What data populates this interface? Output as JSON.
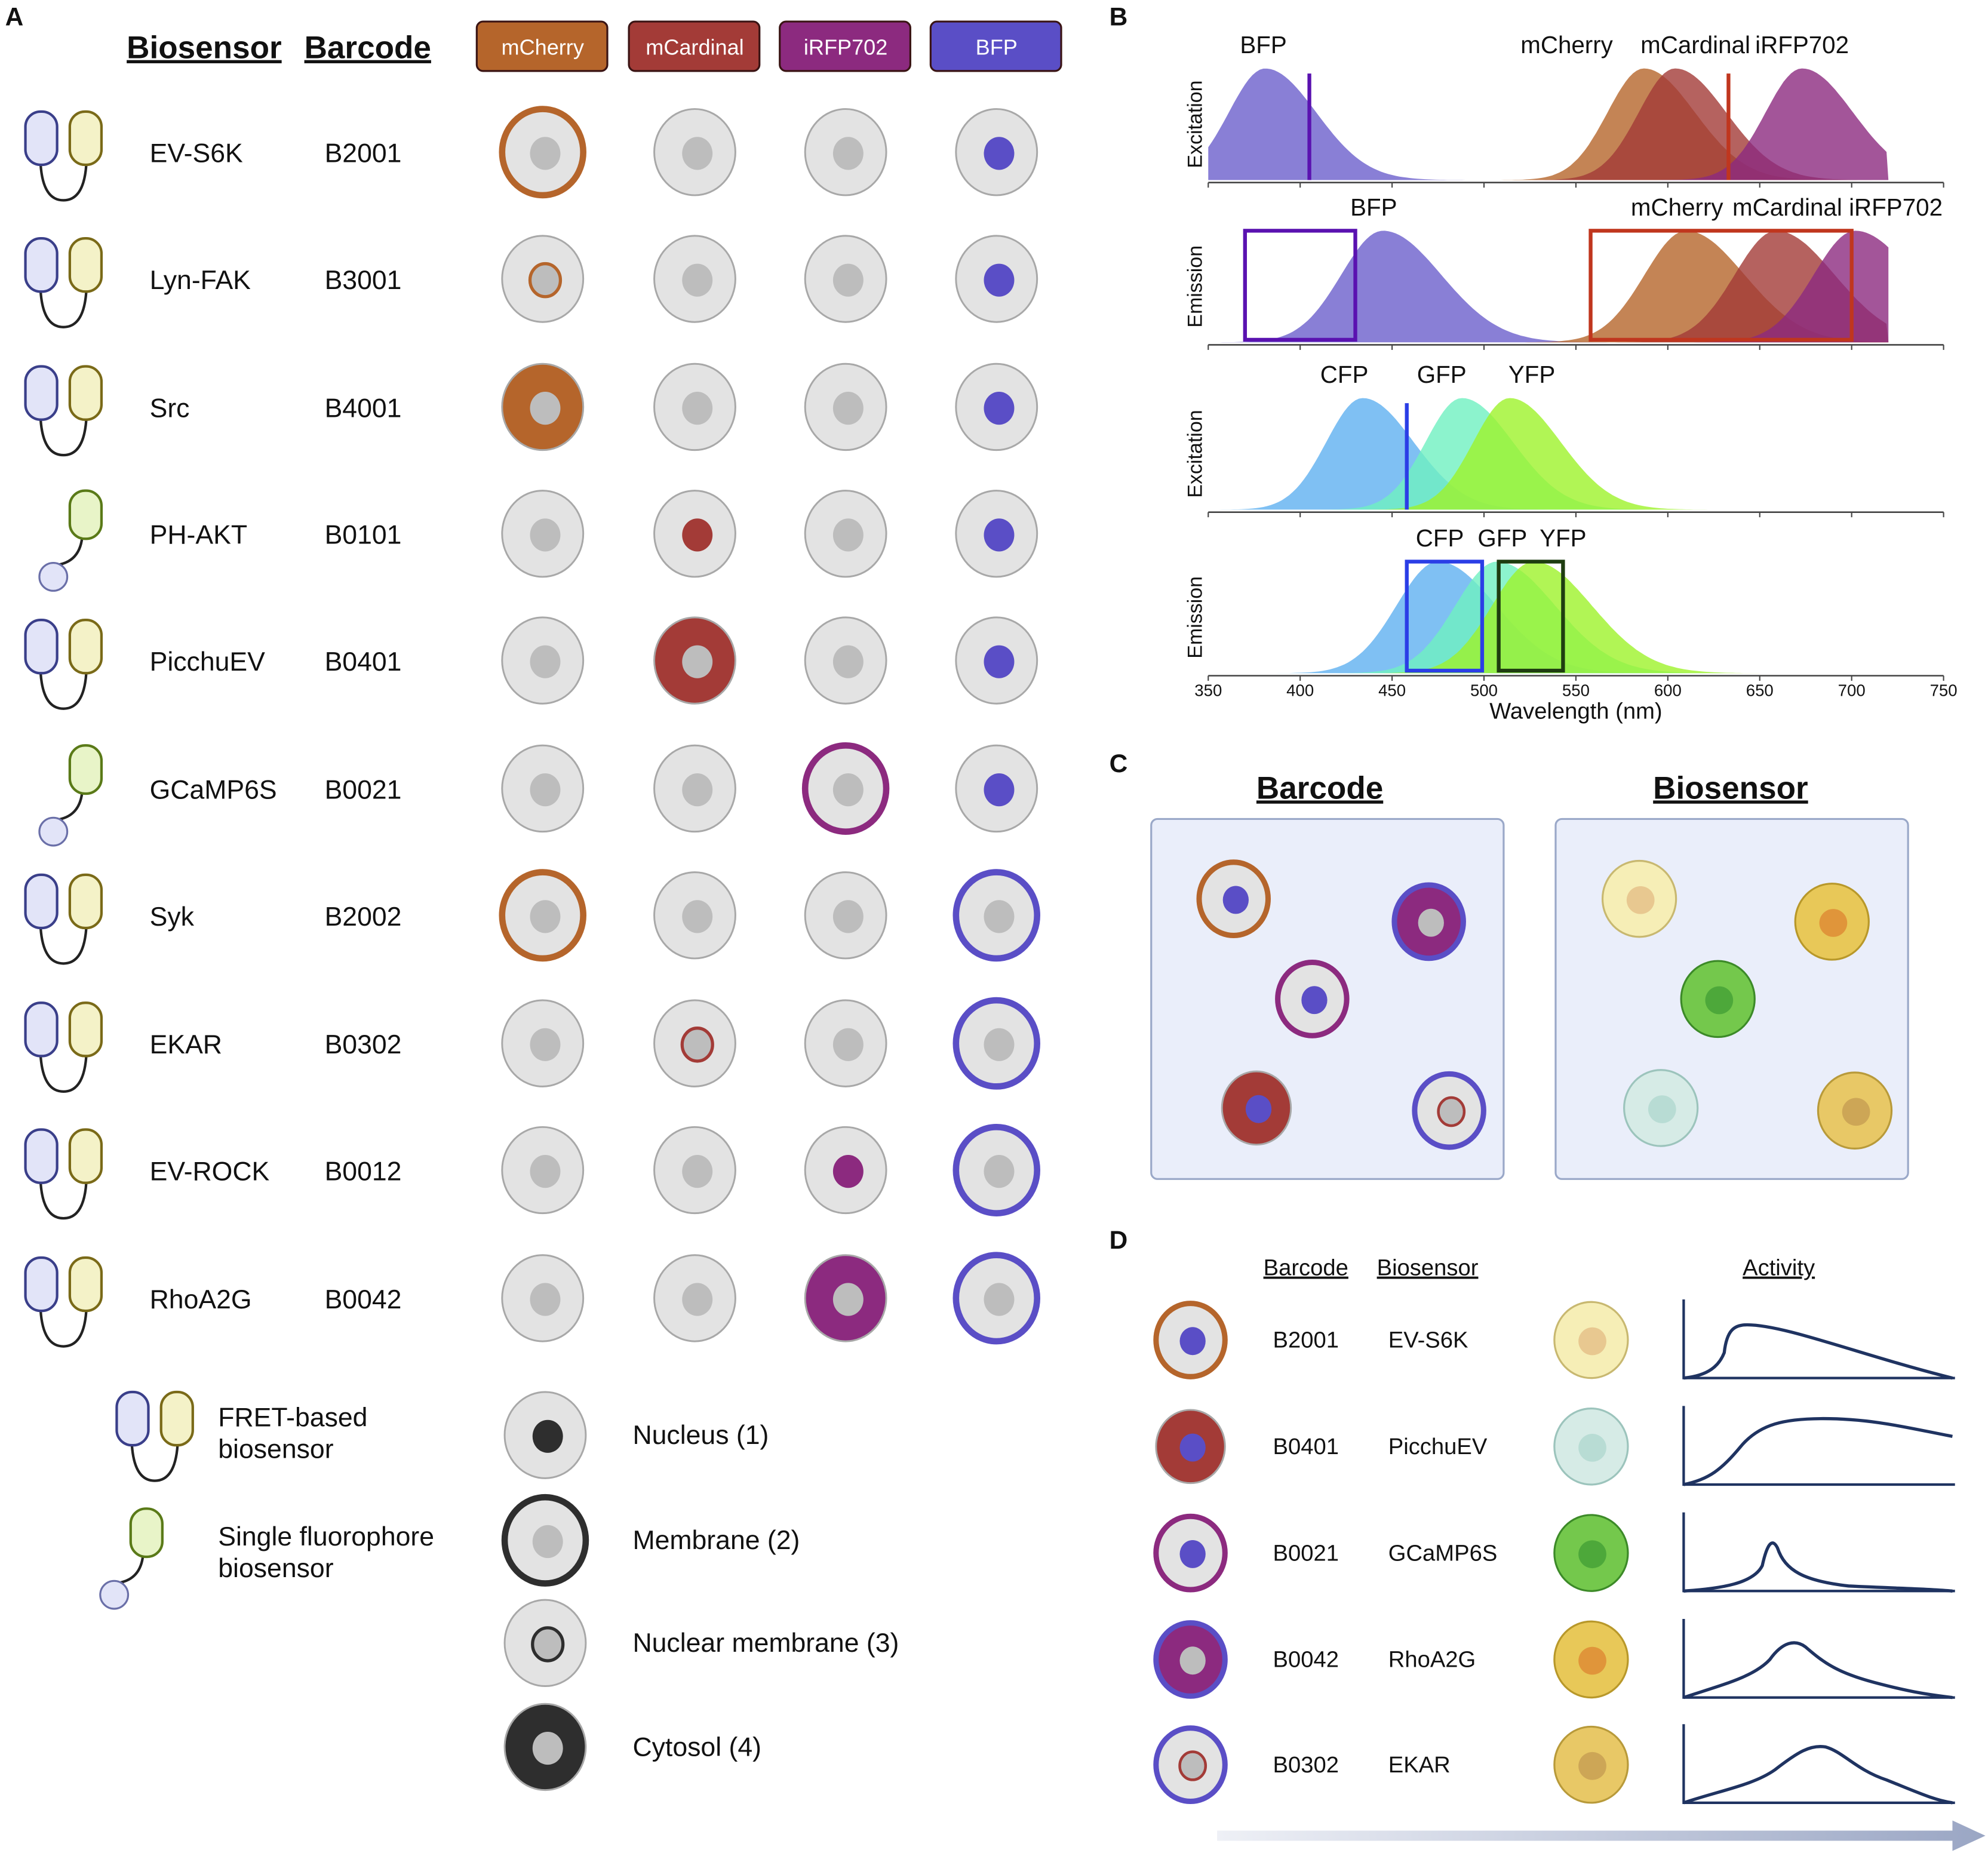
{
  "colors": {
    "mCherry": "#b5652b",
    "mCardinal": "#a33b37",
    "iRFP702": "#8c2a7f",
    "BFP": "#5a4ec6",
    "cell": "#e3e3e3",
    "cellStroke": "#a8a8a8",
    "nucleus": "#bdbdbd",
    "legendDark": "#2e2e2e",
    "activity": "#1f3361"
  },
  "panelA": {
    "label": "A",
    "header_biosensor": "Biosensor",
    "header_barcode": "Barcode",
    "channels": [
      "mCherry",
      "mCardinal",
      "iRFP702",
      "BFP"
    ],
    "rows": [
      {
        "biosensor": "EV-S6K",
        "barcode": "B2001",
        "type": "fret"
      },
      {
        "biosensor": "Lyn-FAK",
        "barcode": "B3001",
        "type": "fret"
      },
      {
        "biosensor": "Src",
        "barcode": "B4001",
        "type": "fret"
      },
      {
        "biosensor": "PH-AKT",
        "barcode": "B0101",
        "type": "single"
      },
      {
        "biosensor": "PicchuEV",
        "barcode": "B0401",
        "type": "fret"
      },
      {
        "biosensor": "GCaMP6S",
        "barcode": "B0021",
        "type": "single"
      },
      {
        "biosensor": "Syk",
        "barcode": "B2002",
        "type": "fret"
      },
      {
        "biosensor": "EKAR",
        "barcode": "B0302",
        "type": "fret"
      },
      {
        "biosensor": "EV-ROCK",
        "barcode": "B0012",
        "type": "fret"
      },
      {
        "biosensor": "RhoA2G",
        "barcode": "B0042",
        "type": "fret"
      }
    ],
    "legend_types": [
      {
        "type": "fret",
        "line1": "FRET-based",
        "line2": "biosensor"
      },
      {
        "type": "single",
        "line1": "Single fluorophore",
        "line2": "biosensor"
      }
    ],
    "legend_locations": [
      {
        "code": 1,
        "label": "Nucleus (1)"
      },
      {
        "code": 2,
        "label": "Membrane (2)"
      },
      {
        "code": 3,
        "label": "Nuclear membrane (3)"
      },
      {
        "code": 4,
        "label": "Cytosol (4)"
      }
    ]
  },
  "panelB": {
    "label": "B",
    "xlabel": "Wavelength (nm)",
    "xlim": [
      350,
      750
    ],
    "xticks": [
      350,
      400,
      450,
      500,
      550,
      600,
      650,
      700,
      750
    ],
    "subplots": [
      {
        "ylabel": "Excitation",
        "labels": [
          {
            "text": "BFP",
            "at": 380
          },
          {
            "text": "mCherry",
            "at": 545
          },
          {
            "text": "mCardinal",
            "at": 615
          },
          {
            "text": "iRFP702",
            "at": 673
          }
        ],
        "series": [
          {
            "name": "BFP",
            "peak": 381,
            "color": "#6b5fcc"
          },
          {
            "name": "mCherry",
            "peak": 587,
            "color": "#b5652b"
          },
          {
            "name": "mCardinal",
            "peak": 604,
            "color": "#a33b37"
          },
          {
            "name": "iRFP702",
            "peak": 673,
            "color": "#8c2a7f"
          }
        ],
        "laser_lines": [
          {
            "nm": 405,
            "color": "#5a12b0"
          },
          {
            "nm": 633,
            "color": "#c0361e"
          }
        ],
        "filters": []
      },
      {
        "ylabel": "Emission",
        "labels": [
          {
            "text": "BFP",
            "at": 440
          },
          {
            "text": "mCherry",
            "at": 605
          },
          {
            "text": "mCardinal",
            "at": 665
          },
          {
            "text": "iRFP702",
            "at": 724
          }
        ],
        "series": [
          {
            "name": "BFP",
            "peak": 445,
            "color": "#6b5fcc"
          },
          {
            "name": "mCherry",
            "peak": 610,
            "color": "#b5652b"
          },
          {
            "name": "mCardinal",
            "peak": 659,
            "color": "#a33b37"
          },
          {
            "name": "iRFP702",
            "peak": 702,
            "color": "#8c2a7f"
          }
        ],
        "laser_lines": [],
        "filters": [
          {
            "from": 370,
            "to": 430,
            "color": "#5a12b0"
          },
          {
            "from": 558,
            "to": 700,
            "color": "#c0361e"
          }
        ]
      },
      {
        "ylabel": "Excitation",
        "labels": [
          {
            "text": "CFP",
            "at": 424
          },
          {
            "text": "GFP",
            "at": 477
          },
          {
            "text": "YFP",
            "at": 526
          }
        ],
        "series": [
          {
            "name": "CFP",
            "peak": 434,
            "color": "#5fb0f0"
          },
          {
            "name": "GFP",
            "peak": 488,
            "color": "#6ff0c0"
          },
          {
            "name": "YFP",
            "peak": 514,
            "color": "#9ef22a"
          }
        ],
        "laser_lines": [
          {
            "nm": 458,
            "color": "#2b3ee6"
          }
        ],
        "filters": []
      },
      {
        "ylabel": "Emission",
        "labels": [
          {
            "text": "CFP",
            "at": 476
          },
          {
            "text": "GFP",
            "at": 510
          },
          {
            "text": "YFP",
            "at": 543
          }
        ],
        "series": [
          {
            "name": "CFP",
            "peak": 475,
            "color": "#5fb0f0"
          },
          {
            "name": "GFP",
            "peak": 507,
            "color": "#6ff0c0"
          },
          {
            "name": "YFP",
            "peak": 527,
            "color": "#9ef22a"
          }
        ],
        "laser_lines": [],
        "filters": [
          {
            "from": 458,
            "to": 499,
            "color": "#2b3ee6"
          },
          {
            "from": 508,
            "to": 543,
            "color": "#1e3d10"
          }
        ]
      }
    ]
  },
  "panelC": {
    "label": "C",
    "barcode_title": "Barcode",
    "biosensor_title": "Biosensor",
    "barcode_cells": [
      {
        "membrane": "mCherry",
        "nucleus": "BFP"
      },
      {
        "membrane": "BFP",
        "cytosol": "iRFP702"
      },
      {
        "membrane": "iRFP702",
        "nucleus": "BFP"
      },
      {
        "cytosol": "mCardinal",
        "nucleus": "BFP"
      },
      {
        "membrane": "BFP",
        "nuclear_membrane": "mCardinal"
      }
    ],
    "biosensor_cells": [
      {
        "fill": "#f6eeb6",
        "stroke": "#c8b870",
        "nucleus": "#e8c890"
      },
      {
        "fill": "#e8c858",
        "stroke": "#b8982a",
        "nucleus": "#e0953a"
      },
      {
        "fill": "#74c84c",
        "stroke": "#3c8a28",
        "nucleus": "#4da83a"
      },
      {
        "fill": "#d6ebe6",
        "stroke": "#9cc4bc",
        "nucleus": "#b8dcd4"
      },
      {
        "fill": "#e8c866",
        "stroke": "#b89a3a",
        "nucleus": "#cda656"
      }
    ]
  },
  "panelD": {
    "label": "D",
    "header_barcode": "Barcode",
    "header_biosensor": "Biosensor",
    "header_activity": "Activity",
    "rows": [
      {
        "barcode": "B2001",
        "biosensor": "EV-S6K",
        "cell": {
          "membrane": "mCherry",
          "nucleus": "BFP"
        },
        "sensor": {
          "fill": "#f6eeb6",
          "stroke": "#c8b870",
          "nucleus": "#e8c890"
        },
        "activity": "fast-rise-slow-decay"
      },
      {
        "barcode": "B0401",
        "biosensor": "PicchuEV",
        "cell": {
          "cytosol": "mCardinal",
          "nucleus": "BFP"
        },
        "sensor": {
          "fill": "#d6ebe6",
          "stroke": "#9cc4bc",
          "nucleus": "#b8dcd4"
        },
        "activity": "sustained"
      },
      {
        "barcode": "B0021",
        "biosensor": "GCaMP6S",
        "cell": {
          "membrane": "iRFP702",
          "nucleus": "BFP"
        },
        "sensor": {
          "fill": "#74c84c",
          "stroke": "#3c8a28",
          "nucleus": "#4da83a"
        },
        "activity": "sharp-transient"
      },
      {
        "barcode": "B0042",
        "biosensor": "RhoA2G",
        "cell": {
          "membrane": "BFP",
          "cytosol": "iRFP702"
        },
        "sensor": {
          "fill": "#e8c858",
          "stroke": "#b8982a",
          "nucleus": "#e0953a"
        },
        "activity": "broad-peak"
      },
      {
        "barcode": "B0302",
        "biosensor": "EKAR",
        "cell": {
          "membrane": "BFP",
          "nuclear_membrane": "mCardinal"
        },
        "sensor": {
          "fill": "#e8c866",
          "stroke": "#b89a3a",
          "nucleus": "#cda656"
        },
        "activity": "late-broad-peak"
      }
    ]
  }
}
